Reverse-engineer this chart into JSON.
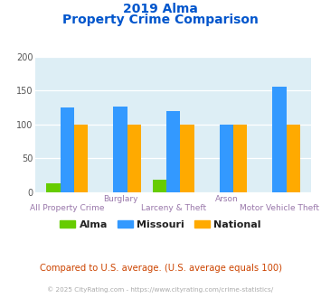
{
  "title_line1": "2019 Alma",
  "title_line2": "Property Crime Comparison",
  "categories": [
    "All Property Crime",
    "Burglary",
    "Larceny & Theft",
    "Arson",
    "Motor Vehicle Theft"
  ],
  "alma_values": [
    13,
    0,
    19,
    0,
    0
  ],
  "missouri_values": [
    125,
    126,
    120,
    100,
    156
  ],
  "national_values": [
    100,
    100,
    100,
    100,
    100
  ],
  "alma_color": "#66cc00",
  "missouri_color": "#3399ff",
  "national_color": "#ffaa00",
  "title_color": "#0055cc",
  "xlabel_color": "#9977aa",
  "ytick_color": "#555555",
  "bg_color": "#ddeef5",
  "fig_bg": "#ffffff",
  "ylim": [
    0,
    200
  ],
  "yticks": [
    0,
    50,
    100,
    150,
    200
  ],
  "footer_text": "Compared to U.S. average. (U.S. average equals 100)",
  "credit_text": "© 2025 CityRating.com - https://www.cityrating.com/crime-statistics/",
  "footer_color": "#cc4400",
  "credit_color": "#aaaaaa",
  "legend_labels": [
    "Alma",
    "Missouri",
    "National"
  ],
  "staggered_labels_top": [
    "",
    "Burglary",
    "",
    "Arson",
    ""
  ],
  "staggered_labels_bottom": [
    "All Property Crime",
    "",
    "Larceny & Theft",
    "",
    "Motor Vehicle Theft"
  ],
  "bar_width": 0.26,
  "group_positions": [
    0,
    1,
    2,
    3,
    4
  ]
}
